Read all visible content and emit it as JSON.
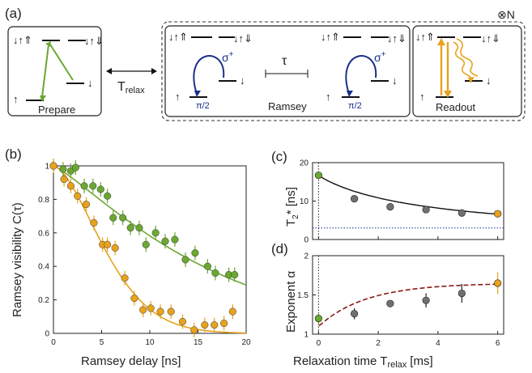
{
  "panels": {
    "a": "(a)",
    "b": "(b)",
    "c": "(c)",
    "d": "(d)"
  },
  "schematic": {
    "prepare_label": "Prepare",
    "ramsey_label": "Ramsey",
    "readout_label": "Readout",
    "t_relax_T": "T",
    "t_relax_sub": "relax",
    "tau": "τ",
    "sigma": "σ",
    "sigma_sup": "+",
    "pi_half": "π/2",
    "level_up_up": "↓↑⇑",
    "level_dd": "↓↑⇓",
    "level_up": "↑",
    "level_down": "↓",
    "otimes_N": "⊗N"
  },
  "colors": {
    "green": "#6aa832",
    "orange": "#e8a21c",
    "navy": "#1b2f8a",
    "dark_red": "#8b1a1a",
    "gray_marker": "#707070"
  },
  "chart_data": [
    {
      "id": "b",
      "type": "scatter",
      "xlabel": "Ramsey delay [ns]",
      "ylabel": "Ramsey visibility C(τ)",
      "xlim": [
        0,
        20
      ],
      "ylim": [
        0,
        1
      ],
      "xticks": [
        0,
        5,
        10,
        15,
        20
      ],
      "yticks": [
        0,
        0.2,
        0.4,
        0.6,
        0.8,
        1
      ],
      "ytick_labels": [
        "0",
        "0.2",
        "0.4",
        "0.6",
        "0.8",
        "1"
      ],
      "series": [
        {
          "color": "green",
          "points": [
            [
              0,
              1.0
            ],
            [
              1,
              0.98
            ],
            [
              1.8,
              0.97
            ],
            [
              2.3,
              0.99
            ],
            [
              3.2,
              0.88
            ],
            [
              4.1,
              0.88
            ],
            [
              4.9,
              0.86
            ],
            [
              5.6,
              0.82
            ],
            [
              6.2,
              0.69
            ],
            [
              7.2,
              0.69
            ],
            [
              8,
              0.63
            ],
            [
              8.9,
              0.63
            ],
            [
              9.6,
              0.53
            ],
            [
              10.6,
              0.6
            ],
            [
              11.6,
              0.55
            ],
            [
              12.6,
              0.56
            ],
            [
              13.7,
              0.44
            ],
            [
              14.7,
              0.48
            ],
            [
              16,
              0.4
            ],
            [
              16.8,
              0.36
            ],
            [
              18.2,
              0.35
            ],
            [
              18.8,
              0.35
            ]
          ],
          "fit": "green"
        },
        {
          "color": "orange",
          "points": [
            [
              0,
              1.0
            ],
            [
              1.1,
              0.92
            ],
            [
              1.8,
              0.88
            ],
            [
              2.5,
              0.82
            ],
            [
              3.4,
              0.77
            ],
            [
              4.2,
              0.66
            ],
            [
              5.1,
              0.53
            ],
            [
              5.6,
              0.53
            ],
            [
              6.4,
              0.51
            ],
            [
              7.4,
              0.33
            ],
            [
              8.4,
              0.21
            ],
            [
              9.3,
              0.14
            ],
            [
              10.1,
              0.15
            ],
            [
              11.1,
              0.13
            ],
            [
              12.2,
              0.13
            ],
            [
              13.4,
              0.07
            ],
            [
              14.6,
              0.02
            ],
            [
              15.7,
              0.05
            ],
            [
              16.7,
              0.05
            ],
            [
              17.7,
              0.06
            ],
            [
              18.6,
              0.13
            ]
          ],
          "fit": "orange"
        }
      ]
    },
    {
      "id": "c",
      "type": "scatter",
      "ylabel": "T2* [ns]",
      "xlim": [
        -0.2,
        6.2
      ],
      "ylim": [
        0,
        20
      ],
      "yticks": [
        0,
        10,
        20
      ],
      "xticks": [
        0,
        2,
        4,
        6
      ],
      "points": [
        {
          "x": 0,
          "y": 16.7,
          "color": "green"
        },
        {
          "x": 1.2,
          "y": 10.6,
          "color": "gray"
        },
        {
          "x": 2.4,
          "y": 8.5,
          "color": "gray"
        },
        {
          "x": 3.6,
          "y": 7.8,
          "color": "gray"
        },
        {
          "x": 4.8,
          "y": 6.9,
          "color": "gray"
        },
        {
          "x": 6.0,
          "y": 6.7,
          "color": "orange"
        }
      ],
      "hline": 3,
      "vline": 0
    },
    {
      "id": "d",
      "type": "scatter",
      "xlabel": "Relaxation time T relax (ms)",
      "ylabel": "Exponent α",
      "xlim": [
        -0.2,
        6.2
      ],
      "ylim": [
        1,
        2
      ],
      "yticks": [
        1,
        1.5,
        2
      ],
      "xticks": [
        0,
        2,
        4,
        6
      ],
      "points": [
        {
          "x": 0,
          "y": 1.2,
          "err": 0.07,
          "color": "green"
        },
        {
          "x": 1.2,
          "y": 1.26,
          "err": 0.07,
          "color": "gray"
        },
        {
          "x": 2.4,
          "y": 1.39,
          "err": 0.04,
          "color": "gray"
        },
        {
          "x": 3.6,
          "y": 1.43,
          "err": 0.09,
          "color": "gray"
        },
        {
          "x": 4.8,
          "y": 1.52,
          "err": 0.12,
          "color": "gray"
        },
        {
          "x": 6.0,
          "y": 1.65,
          "err": 0.14,
          "color": "orange"
        }
      ],
      "vline": 0
    }
  ],
  "labels": {
    "b_x": "Ramsey delay [ns]",
    "b_y": "Ramsey visibility C(τ)",
    "c_y": "T2* [ns]",
    "c_y_T": "T",
    "c_y_sub": "2",
    "c_y_rest": "* [ns]",
    "d_y": "Exponent α",
    "d_x_pre": "Relaxation time T",
    "d_x_sub": "relax",
    "d_x_post": "[ms]"
  }
}
